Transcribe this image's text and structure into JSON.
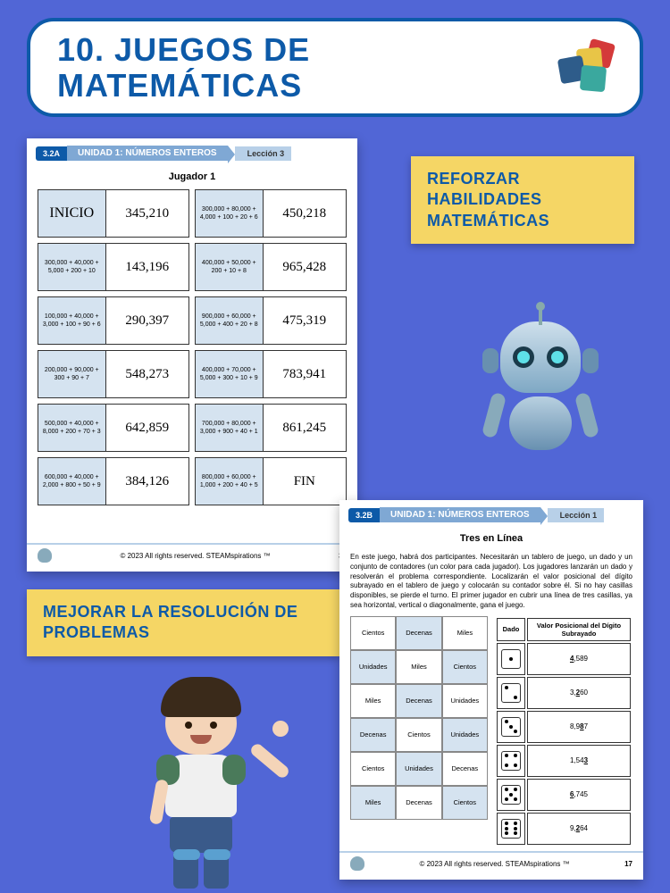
{
  "title": "10. JUEGOS DE MATEMÁTICAS",
  "callouts": {
    "c1": "REFORZAR HABILIDADES MATEMÁTICAS",
    "c2": "MEJORAR LA RESOLUCIÓN DE PROBLEMAS"
  },
  "ws1": {
    "tag_code": "3.2A",
    "tag_unit": "UNIDAD 1: NÚMEROS ENTEROS",
    "tag_lesson": "Lección 3",
    "subtitle": "Jugador 1",
    "footer_copy": "© 2023 All rights reserved. STEAMspirations ™",
    "footer_page": "39",
    "dominoes": [
      {
        "left": "INICIO",
        "leftBig": true,
        "right": "345,210"
      },
      {
        "left": "300,000 + 80,000 + 4,000 + 100 + 20 + 6",
        "right": "450,218"
      },
      {
        "left": "300,000 + 40,000 + 5,000 + 200 + 10",
        "right": "143,196"
      },
      {
        "left": "400,000 + 50,000 + 200 + 10 + 8",
        "right": "965,428"
      },
      {
        "left": "100,000 + 40,000 + 3,000 + 100 + 90 + 6",
        "right": "290,397"
      },
      {
        "left": "900,000 + 60,000 + 5,000 + 400 + 20 + 8",
        "right": "475,319"
      },
      {
        "left": "200,000 + 90,000 + 300 + 90 + 7",
        "right": "548,273"
      },
      {
        "left": "400,000 + 70,000 + 5,000 + 300 + 10 + 9",
        "right": "783,941"
      },
      {
        "left": "500,000 + 40,000 + 8,000 + 200 + 70 + 3",
        "right": "642,859"
      },
      {
        "left": "700,000 + 80,000 + 3,000 + 900 + 40 + 1",
        "right": "861,245"
      },
      {
        "left": "600,000 + 40,000 + 2,000 + 800 + 50 + 9",
        "right": "384,126"
      },
      {
        "left": "800,000 + 60,000 + 1,000 + 200 + 40 + 5",
        "right": "FIN",
        "rightBig": true
      }
    ]
  },
  "ws2": {
    "tag_code": "3.2B",
    "tag_unit": "UNIDAD 1: NÚMEROS ENTEROS",
    "tag_lesson": "Lección 1",
    "subtitle": "Tres en Línea",
    "desc": "En este juego, habrá dos participantes. Necesitarán un tablero de juego, un dado y un conjunto de contadores (un color para cada jugador). Los jugadores lanzarán un dado y resolverán el problema correspondiente. Localizarán el valor posicional del dígito subrayado en el tablero de juego y colocarán su contador sobre él. Si no hay casillas disponibles, se pierde el turno. El primer jugador en cubrir una línea de tres casillas, ya sea horizontal, vertical o diagonalmente, gana el juego.",
    "footer_copy": "© 2023 All rights reserved. STEAMspirations ™",
    "footer_page": "17",
    "pos_cells": [
      {
        "t": "Cientos",
        "s": 0
      },
      {
        "t": "Decenas",
        "s": 1
      },
      {
        "t": "Miles",
        "s": 0
      },
      {
        "t": "Unidades",
        "s": 1
      },
      {
        "t": "Miles",
        "s": 0
      },
      {
        "t": "Cientos",
        "s": 1
      },
      {
        "t": "Miles",
        "s": 0
      },
      {
        "t": "Decenas",
        "s": 1
      },
      {
        "t": "Unidades",
        "s": 0
      },
      {
        "t": "Decenas",
        "s": 1
      },
      {
        "t": "Cientos",
        "s": 0
      },
      {
        "t": "Unidades",
        "s": 1
      },
      {
        "t": "Cientos",
        "s": 0
      },
      {
        "t": "Unidades",
        "s": 1
      },
      {
        "t": "Decenas",
        "s": 0
      },
      {
        "t": "Miles",
        "s": 1
      },
      {
        "t": "Decenas",
        "s": 0
      },
      {
        "t": "Cientos",
        "s": 1
      }
    ],
    "dice_header_1": "Dado",
    "dice_header_2": "Valor Posicional del Dígito Subrayado",
    "dice_rows": [
      {
        "pips": [
          5
        ],
        "pre": "",
        "u": "4",
        "post": ",589"
      },
      {
        "pips": [
          1,
          9
        ],
        "pre": "3,",
        "u": "2",
        "post": "60"
      },
      {
        "pips": [
          1,
          5,
          9
        ],
        "pre": "8,9",
        "u": "8",
        "post": "7"
      },
      {
        "pips": [
          1,
          3,
          7,
          9
        ],
        "pre": "1,54",
        "u": "3",
        "post": ""
      },
      {
        "pips": [
          1,
          3,
          5,
          7,
          9
        ],
        "pre": "",
        "u": "6",
        "post": ",745"
      },
      {
        "pips": [
          1,
          3,
          4,
          6,
          7,
          9
        ],
        "pre": "9,",
        "u": "2",
        "post": "64"
      }
    ]
  }
}
